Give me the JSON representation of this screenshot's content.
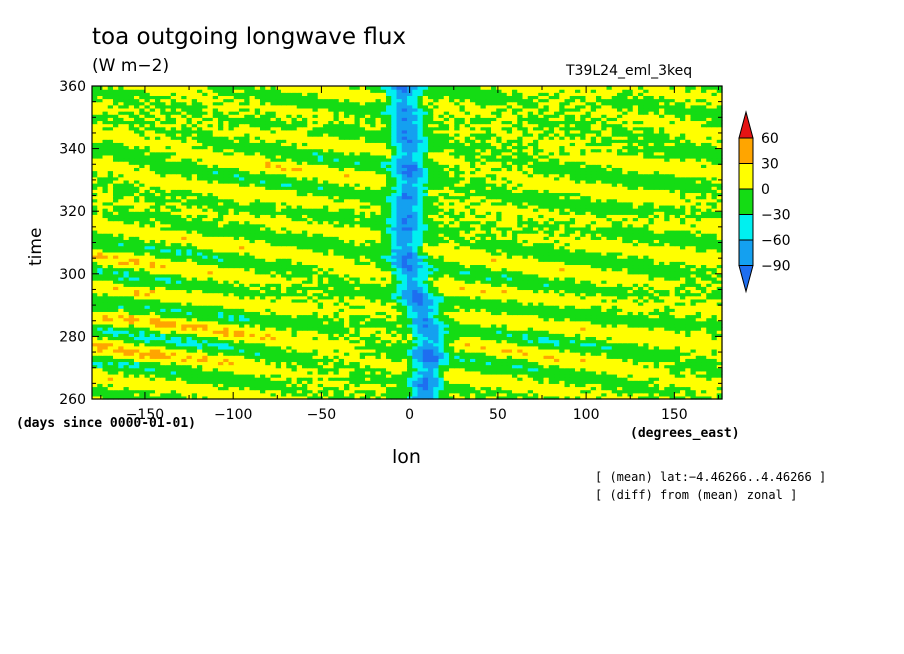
{
  "header": {
    "title": "toa outgoing longwave flux",
    "units": "(W m−2)",
    "run_name": "T39L24_eml_3keq"
  },
  "notes": [
    "[ (mean) lat:−4.46266..4.46266 ]",
    "[ (diff) from (mean) zonal ]"
  ],
  "chart_data": {
    "type": "heatmap",
    "xlabel": "lon",
    "ylabel": "time",
    "x_units": "(degrees_east)",
    "y_units": "(days since 0000-01-01)",
    "xlim": [
      -180,
      177
    ],
    "ylim": [
      260,
      360
    ],
    "x_ticks": [
      -150,
      -100,
      -50,
      0,
      50,
      100,
      150
    ],
    "x_tick_labels": [
      "−150",
      "−100",
      "−50",
      "0",
      "50",
      "100",
      "150"
    ],
    "y_ticks": [
      260,
      280,
      300,
      320,
      340,
      360
    ],
    "y_tick_labels": [
      "260",
      "280",
      "300",
      "320",
      "340",
      "360"
    ],
    "colorbar": {
      "levels": [
        -90,
        -60,
        -30,
        0,
        30,
        60
      ],
      "level_labels": [
        "−90",
        "−60",
        "−30",
        "0",
        "30",
        "60"
      ],
      "colors": [
        "#1e6ef0",
        "#14a0f0",
        "#00f0f0",
        "#14dc14",
        "#ffff00",
        "#ffa500",
        "#e61414"
      ],
      "extend": "both"
    },
    "features": {
      "convective_band": [
        {
          "time": 260,
          "lon": 8
        },
        {
          "time": 270,
          "lon": 10
        },
        {
          "time": 280,
          "lon": 12
        },
        {
          "time": 290,
          "lon": 6
        },
        {
          "time": 300,
          "lon": 0
        },
        {
          "time": 310,
          "lon": -3
        },
        {
          "time": 320,
          "lon": -2
        },
        {
          "time": 330,
          "lon": 0
        },
        {
          "time": 340,
          "lon": 0
        },
        {
          "time": 350,
          "lon": -2
        },
        {
          "time": 360,
          "lon": -5
        }
      ],
      "band_min_anomaly": -90,
      "background_range": [
        -30,
        30
      ]
    }
  }
}
